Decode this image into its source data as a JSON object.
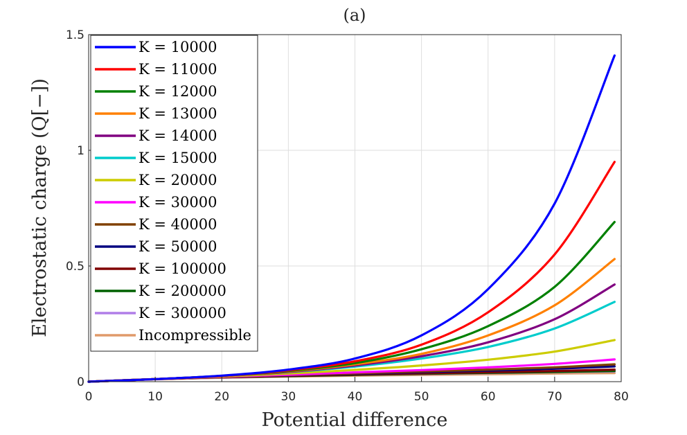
{
  "chart_data": {
    "type": "line",
    "title": "(a)",
    "xlabel": "Potential difference",
    "ylabel": "Electrostatic charge (Q[−])",
    "xlim": [
      0,
      80
    ],
    "ylim": [
      0,
      1.5
    ],
    "xticks": [
      "0",
      "10",
      "20",
      "30",
      "40",
      "50",
      "60",
      "70",
      "80"
    ],
    "yticks": [
      "0",
      "0.5",
      "1",
      "1.5"
    ],
    "grid": true,
    "legend_position": "top-left",
    "x": [
      0,
      10,
      20,
      30,
      40,
      50,
      60,
      70,
      79
    ],
    "series": [
      {
        "name": "K = 10000",
        "color": "#0000ff",
        "values": [
          0,
          0.011,
          0.026,
          0.052,
          0.1,
          0.2,
          0.4,
          0.77,
          1.41
        ]
      },
      {
        "name": "K = 11000",
        "color": "#ff0000",
        "values": [
          0,
          0.011,
          0.025,
          0.049,
          0.088,
          0.16,
          0.3,
          0.55,
          0.95
        ]
      },
      {
        "name": "K = 12000",
        "color": "#008000",
        "values": [
          0,
          0.011,
          0.025,
          0.046,
          0.08,
          0.14,
          0.24,
          0.41,
          0.69
        ]
      },
      {
        "name": "K = 13000",
        "color": "#ff8000",
        "values": [
          0,
          0.011,
          0.024,
          0.044,
          0.075,
          0.12,
          0.2,
          0.33,
          0.53
        ]
      },
      {
        "name": "K = 14000",
        "color": "#800080",
        "values": [
          0,
          0.011,
          0.024,
          0.042,
          0.07,
          0.11,
          0.17,
          0.27,
          0.42
        ]
      },
      {
        "name": "K = 15000",
        "color": "#00cccc",
        "values": [
          0,
          0.011,
          0.024,
          0.041,
          0.065,
          0.1,
          0.15,
          0.23,
          0.345
        ]
      },
      {
        "name": "K = 20000",
        "color": "#cccc00",
        "values": [
          0,
          0.011,
          0.022,
          0.035,
          0.051,
          0.07,
          0.095,
          0.13,
          0.18
        ]
      },
      {
        "name": "K = 30000",
        "color": "#ff00ff",
        "values": [
          0,
          0.011,
          0.021,
          0.03,
          0.04,
          0.05,
          0.062,
          0.077,
          0.096
        ]
      },
      {
        "name": "K = 40000",
        "color": "#804000",
        "values": [
          0,
          0.011,
          0.02,
          0.028,
          0.036,
          0.044,
          0.052,
          0.062,
          0.075
        ]
      },
      {
        "name": "K = 50000",
        "color": "#000080",
        "values": [
          0,
          0.011,
          0.02,
          0.027,
          0.034,
          0.041,
          0.048,
          0.056,
          0.066
        ]
      },
      {
        "name": "K = 100000",
        "color": "#800000",
        "values": [
          0,
          0.011,
          0.019,
          0.025,
          0.031,
          0.036,
          0.041,
          0.046,
          0.052
        ]
      },
      {
        "name": "K = 200000",
        "color": "#006000",
        "values": [
          0,
          0.011,
          0.019,
          0.024,
          0.029,
          0.034,
          0.038,
          0.042,
          0.046
        ]
      },
      {
        "name": "K = 300000",
        "color": "#b07ee8",
        "values": [
          0,
          0.011,
          0.018,
          0.024,
          0.029,
          0.033,
          0.037,
          0.041,
          0.044
        ]
      },
      {
        "name": "Incompressible",
        "color": "#e09a6a",
        "values": [
          0,
          0.01,
          0.017,
          0.022,
          0.026,
          0.029,
          0.032,
          0.035,
          0.037
        ]
      }
    ]
  }
}
